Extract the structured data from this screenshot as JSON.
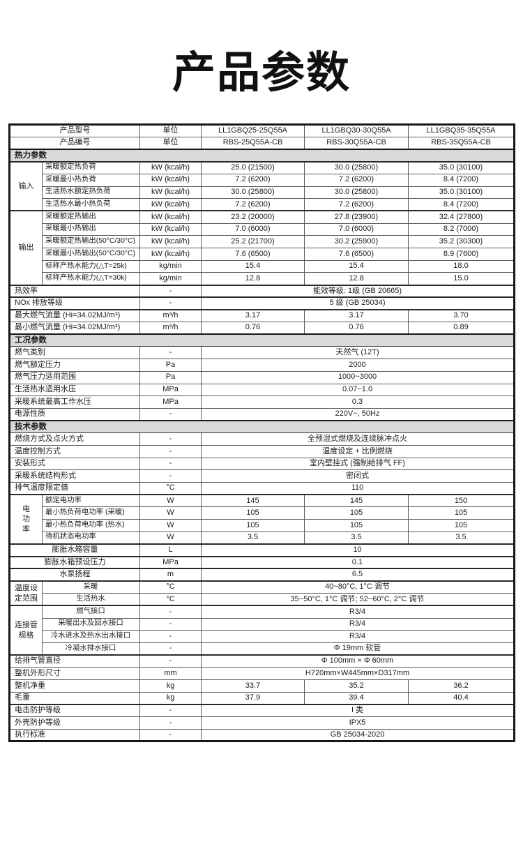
{
  "page": {
    "title": "产品参数"
  },
  "accent_colors": {
    "section_bg": "#d9d9d9",
    "border_dark": "#161616",
    "border_light": "#5a5a5a",
    "text": "#1b1b1b"
  },
  "table": {
    "rows": [
      {
        "l": "产品型号",
        "la": "c",
        "u": "单位",
        "v": [
          "LL1GBQ25-25Q55A",
          "LL1GBQ30-30Q55A",
          "LL1GBQ35-35Q55A"
        ]
      },
      {
        "l": "产品编号",
        "la": "c",
        "u": "单位",
        "v": [
          "RBS-25Q55A-CB",
          "RBS-30Q55A-CB",
          "RBS-35Q55A-CB"
        ]
      },
      {
        "sec": "热力参数"
      },
      {
        "g": {
          "t": "输入",
          "n": 4
        },
        "l": "采暖额定热负荷",
        "u": "kW (kcal/h)",
        "v": [
          "25.0 (21500)",
          "30.0 (25800)",
          "35.0 (30100)"
        ],
        "tb": true
      },
      {
        "sub": true,
        "l": "采暖最小热负荷",
        "u": "kW (kcal/h)",
        "v": [
          "7.2 (6200)",
          "7.2 (6200)",
          "8.4 (7200)"
        ]
      },
      {
        "sub": true,
        "l": "生活热水额定热负荷",
        "u": "kW (kcal/h)",
        "v": [
          "30.0 (25800)",
          "30.0 (25800)",
          "35.0 (30100)"
        ]
      },
      {
        "sub": true,
        "l": "生活热水最小热负荷",
        "u": "kW (kcal/h)",
        "v": [
          "7.2 (6200)",
          "7.2 (6200)",
          "8.4 (7200)"
        ]
      },
      {
        "g": {
          "t": "输出",
          "n": 6
        },
        "l": "采暖额定热输出",
        "u": "kW (kcal/h)",
        "v": [
          "23.2 (20000)",
          "27.8 (23900)",
          "32.4 (27800)"
        ],
        "tb": true
      },
      {
        "sub": true,
        "l": "采暖最小热输出",
        "u": "kW (kcal/h)",
        "v": [
          "7.0 (6000)",
          "7.0 (6000)",
          "8.2 (7000)"
        ]
      },
      {
        "sub": true,
        "l": "采暖额定热输出(50°C/30°C)",
        "u": "kW (kcal/h)",
        "v": [
          "25.2 (21700)",
          "30.2 (25900)",
          "35.2 (30300)"
        ]
      },
      {
        "sub": true,
        "l": "采暖最小热输出(50°C/30°C)",
        "u": "kW (kcal/h)",
        "v": [
          "7.6 (6500)",
          "7.6 (6500)",
          "8.9 (7600)"
        ]
      },
      {
        "sub": true,
        "l": "标称产热水能力(△T=25k)",
        "u": "kg/min",
        "v": [
          "15.4",
          "15.4",
          "18.0"
        ]
      },
      {
        "sub": true,
        "l": "标称产热水能力(△T=30k)",
        "u": "kg/min",
        "v": [
          "12.8",
          "12.8",
          "15.0"
        ]
      },
      {
        "l": "热效率",
        "u": "-",
        "v": [
          "能效等级: 1级 (GB 20665)"
        ],
        "tb": true
      },
      {
        "l": "NOx 排放等级",
        "u": "-",
        "v": [
          "5 级 (GB 25034)"
        ],
        "tb": true
      },
      {
        "l": "最大燃气流量 (Hi=34.02MJ/m³)",
        "u": "m³/h",
        "v": [
          "3.17",
          "3.17",
          "3.70"
        ],
        "tb": true
      },
      {
        "l": "最小燃气流量 (Hi=34.02MJ/m³)",
        "u": "m³/h",
        "v": [
          "0.76",
          "0.76",
          "0.89"
        ]
      },
      {
        "sec": "工况参数"
      },
      {
        "l": "燃气类别",
        "u": "-",
        "v": [
          "天然气 (12T)"
        ]
      },
      {
        "l": "燃气额定压力",
        "u": "Pa",
        "v": [
          "2000"
        ]
      },
      {
        "l": "燃气压力适用范围",
        "u": "Pa",
        "v": [
          "1000~3000"
        ]
      },
      {
        "l": "生活热水适用水压",
        "u": "MPa",
        "v": [
          "0.07~1.0"
        ]
      },
      {
        "l": "采暖系统最高工作水压",
        "u": "MPa",
        "v": [
          "0.3"
        ]
      },
      {
        "l": "电源性质",
        "u": "-",
        "v": [
          "220V~, 50Hz"
        ]
      },
      {
        "sec": "技术参数"
      },
      {
        "l": "燃烧方式及点火方式",
        "u": "-",
        "v": [
          "全预混式燃烧及连续脉冲点火"
        ]
      },
      {
        "l": "温度控制方式",
        "u": "-",
        "v": [
          "温度设定 + 比例燃烧"
        ]
      },
      {
        "l": "安装形式",
        "u": "-",
        "v": [
          "室内壁挂式 (强制给排气 FF)"
        ]
      },
      {
        "l": "采暖系统结构形式",
        "u": "-",
        "v": [
          "密闭式"
        ]
      },
      {
        "l": "排气温度限定值",
        "u": "°C",
        "v": [
          "110"
        ]
      },
      {
        "g": {
          "t": "电\n功\n率",
          "n": 4
        },
        "l": "额定电功率",
        "u": "W",
        "v": [
          "145",
          "145",
          "150"
        ],
        "tb": true
      },
      {
        "sub": true,
        "l": "最小热负荷电功率 (采暖)",
        "u": "W",
        "v": [
          "105",
          "105",
          "105"
        ]
      },
      {
        "sub": true,
        "l": "最小热负荷电功率 (热水)",
        "u": "W",
        "v": [
          "105",
          "105",
          "105"
        ]
      },
      {
        "sub": true,
        "l": "待机状态电功率",
        "u": "W",
        "v": [
          "3.5",
          "3.5",
          "3.5"
        ]
      },
      {
        "l": "膨胀水箱容量",
        "la": "c",
        "u": "L",
        "v": [
          "10"
        ],
        "tb": true
      },
      {
        "l": "膨胀水箱预设压力",
        "la": "c",
        "u": "MPa",
        "v": [
          "0.1"
        ],
        "tb": true
      },
      {
        "l": "水泵扬程",
        "la": "c",
        "u": "m",
        "v": [
          "6.5"
        ],
        "tb": true
      },
      {
        "g": {
          "t": "温度设\n定范围",
          "n": 2
        },
        "l": "采暖",
        "lc": "c",
        "u": "°C",
        "v": [
          "40~80°C, 1°C 调节"
        ],
        "tb": true
      },
      {
        "sub": true,
        "l": "生活热水",
        "lc": "c",
        "u": "°C",
        "v": [
          "35~50°C, 1°C 调节; 52~60°C, 2°C 调节"
        ]
      },
      {
        "g": {
          "t": "连接管\n规格",
          "n": 4
        },
        "l": "燃气接口",
        "lc": "c",
        "u": "-",
        "v": [
          "R3/4"
        ],
        "tb": true
      },
      {
        "sub": true,
        "l": "采暖出水及回水接口",
        "lc": "c",
        "u": "-",
        "v": [
          "R3/4"
        ]
      },
      {
        "sub": true,
        "l": "冷水进水及热水出水接口",
        "lc": "c",
        "u": "-",
        "v": [
          "R3/4"
        ]
      },
      {
        "sub": true,
        "l": "冷凝水排水接口",
        "lc": "c",
        "u": "-",
        "v": [
          "Φ 19mm 软管"
        ]
      },
      {
        "l": "给排气管直径",
        "u": "-",
        "v": [
          "Φ 100mm × Φ 60mm"
        ],
        "tb": true
      },
      {
        "l": "整机外形尺寸",
        "u": "mm",
        "v": [
          "H720mm×W445mm×D317mm"
        ]
      },
      {
        "l": "整机净重",
        "u": "kg",
        "v": [
          "33.7",
          "35.2",
          "36.2"
        ]
      },
      {
        "l": "毛重",
        "u": "kg",
        "v": [
          "37.9",
          "39.4",
          "40.4"
        ]
      },
      {
        "l": "电击防护等级",
        "u": "-",
        "v": [
          "I 类"
        ],
        "tb": true
      },
      {
        "l": "外壳防护等级",
        "u": "-",
        "v": [
          "IPX5"
        ]
      },
      {
        "l": "执行标准",
        "u": "-",
        "v": [
          "GB 25034-2020"
        ]
      }
    ]
  }
}
